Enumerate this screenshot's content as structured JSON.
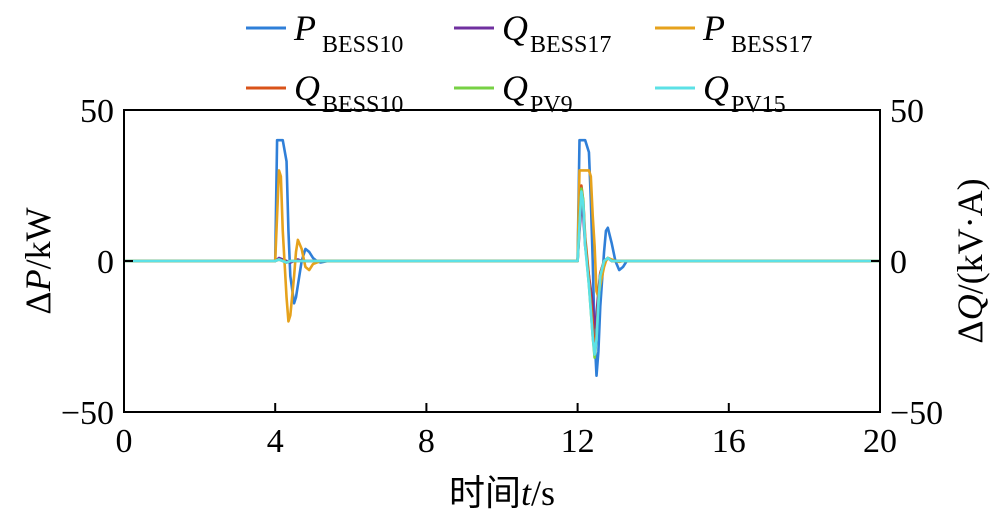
{
  "chart_data": {
    "type": "line",
    "xlabel_prefix": "时间",
    "xlabel_var": "t",
    "xlabel_unit": "/s",
    "ylabel_left_prefix": "Δ",
    "ylabel_left_var": "P",
    "ylabel_left_unit": "/kW",
    "ylabel_right_prefix": "Δ",
    "ylabel_right_var": "Q",
    "ylabel_right_unit": "/(kV·A)",
    "xlim": [
      0,
      20
    ],
    "ylim_left": [
      -50,
      50
    ],
    "ylim_right": [
      -50,
      50
    ],
    "x_ticks": [
      0,
      4,
      8,
      12,
      16,
      20
    ],
    "x_tick_labels": [
      "0",
      "4",
      "8",
      "12",
      "16",
      "20"
    ],
    "y_ticks_left": [
      -50,
      0,
      50
    ],
    "y_tick_labels_left": [
      "−50",
      "0",
      "50"
    ],
    "y_ticks_right": [
      -50,
      0,
      50
    ],
    "y_tick_labels_right": [
      "−50",
      "0",
      "50"
    ],
    "grid": false,
    "legend_position": "top",
    "series": [
      {
        "name_main": "P",
        "name_sub": "BESS10",
        "color": "#2f7fd8",
        "x": [
          0,
          4.0,
          4.05,
          4.1,
          4.2,
          4.3,
          4.35,
          4.4,
          4.5,
          4.55,
          4.6,
          4.7,
          4.8,
          4.9,
          5.0,
          5.1,
          5.2,
          5.4,
          6.0,
          12.0,
          12.05,
          12.1,
          12.2,
          12.3,
          12.35,
          12.4,
          12.45,
          12.5,
          12.55,
          12.6,
          12.7,
          12.75,
          12.8,
          12.9,
          13.0,
          13.1,
          13.2,
          13.3,
          13.5,
          14.0,
          20
        ],
        "y": [
          0,
          0,
          40,
          40,
          40,
          33,
          10,
          -5,
          -14,
          -12,
          -8,
          0,
          4,
          3,
          1,
          0,
          -0.5,
          0,
          0,
          0,
          40,
          40,
          40,
          36,
          20,
          0,
          -25,
          -38,
          -30,
          -15,
          3,
          10,
          11,
          6,
          0,
          -3,
          -2,
          0,
          0,
          0,
          0
        ]
      },
      {
        "name_main": "Q",
        "name_sub": "BESS17",
        "color": "#7030a0",
        "x": [
          0,
          4.0,
          4.05,
          4.1,
          4.2,
          4.3,
          4.4,
          4.5,
          4.6,
          4.7,
          4.8,
          5.0,
          5.2,
          6.0,
          12.0,
          12.05,
          12.1,
          12.15,
          12.2,
          12.3,
          12.4,
          12.45,
          12.5,
          12.55,
          12.6,
          12.7,
          12.8,
          12.9,
          13.0,
          13.2,
          14.0,
          20
        ],
        "y": [
          0,
          0,
          0.5,
          1,
          0.5,
          0,
          -0.5,
          0,
          0.5,
          0,
          0,
          0,
          0,
          0,
          0,
          10,
          18,
          15,
          5,
          -5,
          -14,
          -22,
          -18,
          -10,
          -4,
          0,
          1,
          0,
          0,
          0,
          0,
          0
        ]
      },
      {
        "name_main": "P",
        "name_sub": "BESS17",
        "color": "#e6a21c",
        "x": [
          0,
          4.0,
          4.05,
          4.1,
          4.15,
          4.2,
          4.3,
          4.35,
          4.4,
          4.5,
          4.55,
          4.6,
          4.7,
          4.8,
          4.9,
          5.0,
          5.2,
          6.0,
          12.0,
          12.05,
          12.1,
          12.2,
          12.3,
          12.35,
          12.4,
          12.45,
          12.5,
          12.55,
          12.6,
          12.7,
          12.75,
          12.8,
          12.9,
          13.0,
          13.1,
          13.2,
          13.4,
          14.0,
          20
        ],
        "y": [
          0,
          0,
          15,
          30,
          28,
          10,
          -12,
          -20,
          -18,
          -5,
          3,
          7,
          4,
          -2,
          -3,
          -1,
          0,
          0,
          0,
          30,
          30,
          30,
          30,
          28,
          15,
          5,
          -10,
          -12,
          -8,
          -2,
          0,
          1,
          0.5,
          0,
          -0.3,
          0,
          0,
          0,
          0
        ]
      },
      {
        "name_main": "Q",
        "name_sub": "BESS10",
        "color": "#d95319",
        "x": [
          0,
          4.0,
          4.1,
          4.2,
          4.3,
          4.4,
          4.5,
          5.0,
          12.0,
          12.05,
          12.1,
          12.15,
          12.2,
          12.3,
          12.4,
          12.45,
          12.5,
          12.55,
          12.6,
          12.7,
          12.8,
          12.9,
          13.0,
          14.0,
          20
        ],
        "y": [
          0,
          0,
          0.5,
          0,
          -0.5,
          0,
          0,
          0,
          0,
          12,
          25,
          20,
          8,
          -5,
          -20,
          -30,
          -24,
          -12,
          -4,
          0,
          1,
          0,
          0,
          0,
          0
        ]
      },
      {
        "name_main": "Q",
        "name_sub": "PV9",
        "color": "#77d144",
        "x": [
          0,
          4.0,
          4.1,
          4.2,
          4.3,
          4.4,
          4.5,
          5.0,
          12.0,
          12.05,
          12.1,
          12.15,
          12.2,
          12.3,
          12.4,
          12.45,
          12.5,
          12.55,
          12.6,
          12.7,
          12.8,
          12.9,
          13.0,
          14.0,
          20
        ],
        "y": [
          0,
          0,
          0.5,
          0,
          -0.5,
          0,
          0,
          0,
          0,
          12,
          24,
          20,
          6,
          -8,
          -25,
          -32,
          -26,
          -14,
          -5,
          0,
          1,
          0,
          0,
          0,
          0
        ]
      },
      {
        "name_main": "Q",
        "name_sub": "PV15",
        "color": "#5ce1e6",
        "x": [
          0,
          4.0,
          4.1,
          4.2,
          4.3,
          4.4,
          4.5,
          5.0,
          12.0,
          12.05,
          12.1,
          12.15,
          12.2,
          12.3,
          12.4,
          12.45,
          12.5,
          12.55,
          12.6,
          12.7,
          12.8,
          12.9,
          13.0,
          14.0,
          20
        ],
        "y": [
          0,
          0,
          0.5,
          0,
          -0.5,
          0,
          0,
          0,
          0,
          12,
          23,
          19,
          5,
          -8,
          -25,
          -31,
          -26,
          -14,
          -5,
          0,
          1,
          0,
          0,
          0,
          0
        ]
      }
    ]
  }
}
